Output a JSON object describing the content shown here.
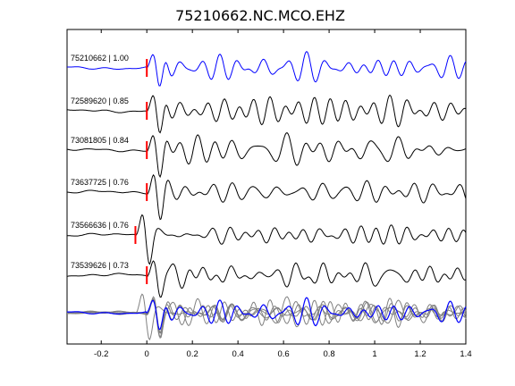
{
  "chart_data": {
    "type": "line",
    "title": "75210662.NC.MCO.EHZ",
    "xlabel": "",
    "ylabel": "",
    "xlim": [
      -0.35,
      1.4
    ],
    "x_ticks": [
      "-0.2",
      "0",
      "0.2",
      "0.4",
      "0.6",
      "0.8",
      "1",
      "1.2",
      "1.4"
    ],
    "x_tick_values": [
      -0.2,
      0,
      0.2,
      0.4,
      0.6,
      0.8,
      1.0,
      1.2,
      1.4
    ],
    "grid": false,
    "series": [
      {
        "name": "75210662 | 1.00",
        "correlation": 1.0,
        "pick_time": 0.0,
        "color": "#0000ff"
      },
      {
        "name": "72589620 | 0.85",
        "correlation": 0.85,
        "pick_time": 0.0,
        "color": "#000000"
      },
      {
        "name": "73081805 | 0.84",
        "correlation": 0.84,
        "pick_time": 0.0,
        "color": "#000000"
      },
      {
        "name": "73637725 | 0.76",
        "correlation": 0.76,
        "pick_time": 0.0,
        "color": "#000000"
      },
      {
        "name": "73566636 | 0.76",
        "correlation": 0.76,
        "pick_time": -0.05,
        "color": "#000000"
      },
      {
        "name": "73539626 | 0.73",
        "correlation": 0.73,
        "pick_time": 0.0,
        "color": "#000000"
      }
    ],
    "stack": {
      "reference_color": "#0000ff",
      "others_color": "#808080"
    },
    "pick_marker_color": "#ff0000"
  }
}
